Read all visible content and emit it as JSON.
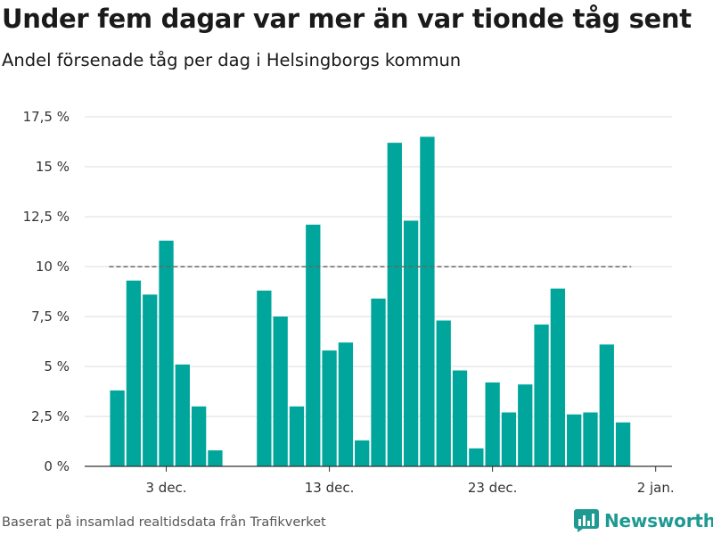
{
  "title": "Under fem dagar var mer än var tionde tåg sent",
  "subtitle": "Andel försenade tåg per dag i Helsingborgs kommun",
  "source": "Baserat på insamlad realtidsdata från Trafikverket",
  "brand": {
    "name": "Newsworthy",
    "icon": "bar-chart-logo-icon",
    "color": "#1f9a93"
  },
  "colors": {
    "bar": "#00a69c",
    "grid": "#dddddd",
    "axis": "#333333",
    "reference": "#666666"
  },
  "chart_data": {
    "type": "bar",
    "x_unit": "date",
    "x": [
      "2023-11-30",
      "2023-12-01",
      "2023-12-02",
      "2023-12-03",
      "2023-12-04",
      "2023-12-05",
      "2023-12-06",
      "2023-12-09",
      "2023-12-10",
      "2023-12-11",
      "2023-12-12",
      "2023-12-13",
      "2023-12-14",
      "2023-12-15",
      "2023-12-16",
      "2023-12-17",
      "2023-12-18",
      "2023-12-19",
      "2023-12-20",
      "2023-12-21",
      "2023-12-22",
      "2023-12-23",
      "2023-12-24",
      "2023-12-25",
      "2023-12-26",
      "2023-12-27",
      "2023-12-28",
      "2023-12-29",
      "2023-12-30",
      "2023-12-31"
    ],
    "values": [
      3.8,
      9.3,
      8.6,
      11.3,
      5.1,
      3.0,
      0.8,
      8.8,
      7.5,
      3.0,
      12.1,
      5.8,
      6.2,
      1.3,
      8.4,
      16.2,
      12.3,
      16.5,
      7.3,
      4.8,
      0.9,
      4.2,
      2.7,
      4.1,
      7.1,
      8.9,
      2.6,
      2.7,
      6.1,
      2.2
    ],
    "xlim": [
      "2023-11-28",
      "2024-01-03"
    ],
    "x_ticks": [
      {
        "date": "2023-12-03",
        "label": "3 dec."
      },
      {
        "date": "2023-12-13",
        "label": "13 dec."
      },
      {
        "date": "2023-12-23",
        "label": "23 dec."
      },
      {
        "date": "2024-01-02",
        "label": "2 jan."
      }
    ],
    "ylim": [
      0,
      17.5
    ],
    "y_ticks": [
      {
        "value": 0,
        "label": "0 %"
      },
      {
        "value": 2.5,
        "label": "2,5 %"
      },
      {
        "value": 5,
        "label": "5 %"
      },
      {
        "value": 7.5,
        "label": "7,5 %"
      },
      {
        "value": 10,
        "label": "10 %"
      },
      {
        "value": 12.5,
        "label": "12,5 %"
      },
      {
        "value": 15,
        "label": "15 %"
      },
      {
        "value": 17.5,
        "label": "17,5 %"
      }
    ],
    "reference_line": {
      "value": 10,
      "style": "dashed",
      "from": "2023-11-30",
      "to": "2023-12-31"
    },
    "grid": true,
    "legend": "none"
  }
}
